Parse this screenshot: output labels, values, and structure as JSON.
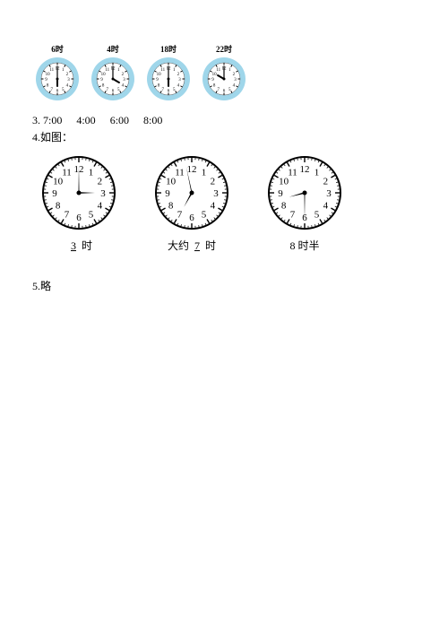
{
  "top_clocks": [
    {
      "label": "6时",
      "hour": 6,
      "minute": 0,
      "ring": "#9fd6ea",
      "face": "#ffffff",
      "hand": "#000000",
      "tick": "#000000"
    },
    {
      "label": "4时",
      "hour": 4,
      "minute": 0,
      "ring": "#9fd6ea",
      "face": "#ffffff",
      "hand": "#000000",
      "tick": "#000000"
    },
    {
      "label": "18时",
      "hour": 6,
      "minute": 0,
      "ring": "#9fd6ea",
      "face": "#ffffff",
      "hand": "#000000",
      "tick": "#000000"
    },
    {
      "label": "22时",
      "hour": 10,
      "minute": 0,
      "ring": "#9fd6ea",
      "face": "#ffffff",
      "hand": "#000000",
      "tick": "#000000"
    }
  ],
  "q3": {
    "prefix": "3. ",
    "times": [
      "7:00",
      "4:00",
      "6:00",
      "8:00"
    ]
  },
  "q4": {
    "prefix": "4.",
    "text": "如图："
  },
  "mid_clocks": [
    {
      "hour": 3,
      "minute": 0,
      "label_pre": "",
      "label_ans": "3",
      "label_post": "时",
      "stroke": "#000000",
      "face": "#ffffff"
    },
    {
      "hour": 6,
      "minute": 58,
      "label_pre": "大约",
      "label_ans": "7",
      "label_post": "时",
      "stroke": "#000000",
      "face": "#ffffff"
    },
    {
      "hour": 8,
      "minute": 30,
      "label_pre": "",
      "label_ans": "",
      "label_post": "8 时半",
      "stroke": "#000000",
      "face": "#ffffff"
    }
  ],
  "q5": {
    "prefix": "5.",
    "text": "略"
  },
  "clock_numerals": [
    "12",
    "1",
    "2",
    "3",
    "4",
    "5",
    "6",
    "7",
    "8",
    "9",
    "10",
    "11"
  ]
}
